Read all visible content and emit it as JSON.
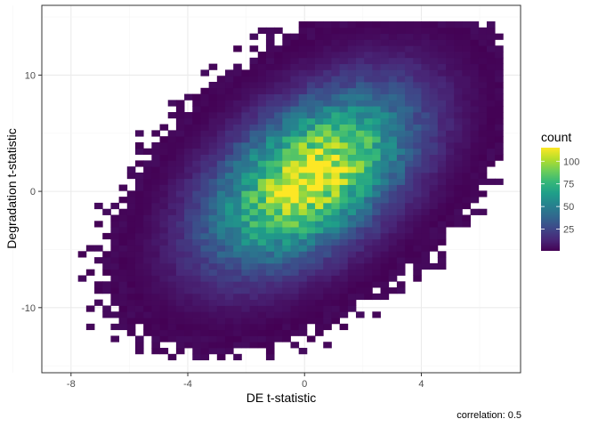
{
  "chart_data": {
    "type": "heatmap",
    "subtype": "2d-bin-count",
    "xlabel": "DE t-statistic",
    "ylabel": "Degradation t-statistic",
    "caption": "correlation: 0.5",
    "xlim": [
      -9,
      7.4
    ],
    "ylim": [
      -15.6,
      16
    ],
    "x_ticks": [
      -8,
      -4,
      0,
      4
    ],
    "x_tick_labels": [
      "-8",
      "-4",
      "0",
      "4"
    ],
    "y_ticks": [
      -10,
      0,
      10
    ],
    "y_tick_labels": [
      "-10",
      "0",
      "10"
    ],
    "grid": true,
    "legend": {
      "title": "count",
      "placement": "right",
      "breaks": [
        25,
        50,
        75,
        100
      ],
      "break_labels": [
        "25",
        "50",
        "75",
        "100"
      ],
      "range": [
        1,
        115
      ]
    },
    "density_model": {
      "description": "bivariate distribution centered near origin",
      "center": [
        0.2,
        2.2
      ],
      "sd_x": 2.1,
      "sd_y": 4.5,
      "correlation": 0.5,
      "peak_count": 112,
      "bin_width": [
        0.28,
        0.52
      ]
    },
    "colors": {
      "viridis": [
        "#440154",
        "#482878",
        "#3e4989",
        "#31688e",
        "#26828e",
        "#1f9e89",
        "#35b779",
        "#6ece58",
        "#b5de2b",
        "#fde725"
      ],
      "panel_border": "#333333",
      "grid_major": "#ebebeb",
      "grid_minor": "#f5f5f5"
    }
  }
}
